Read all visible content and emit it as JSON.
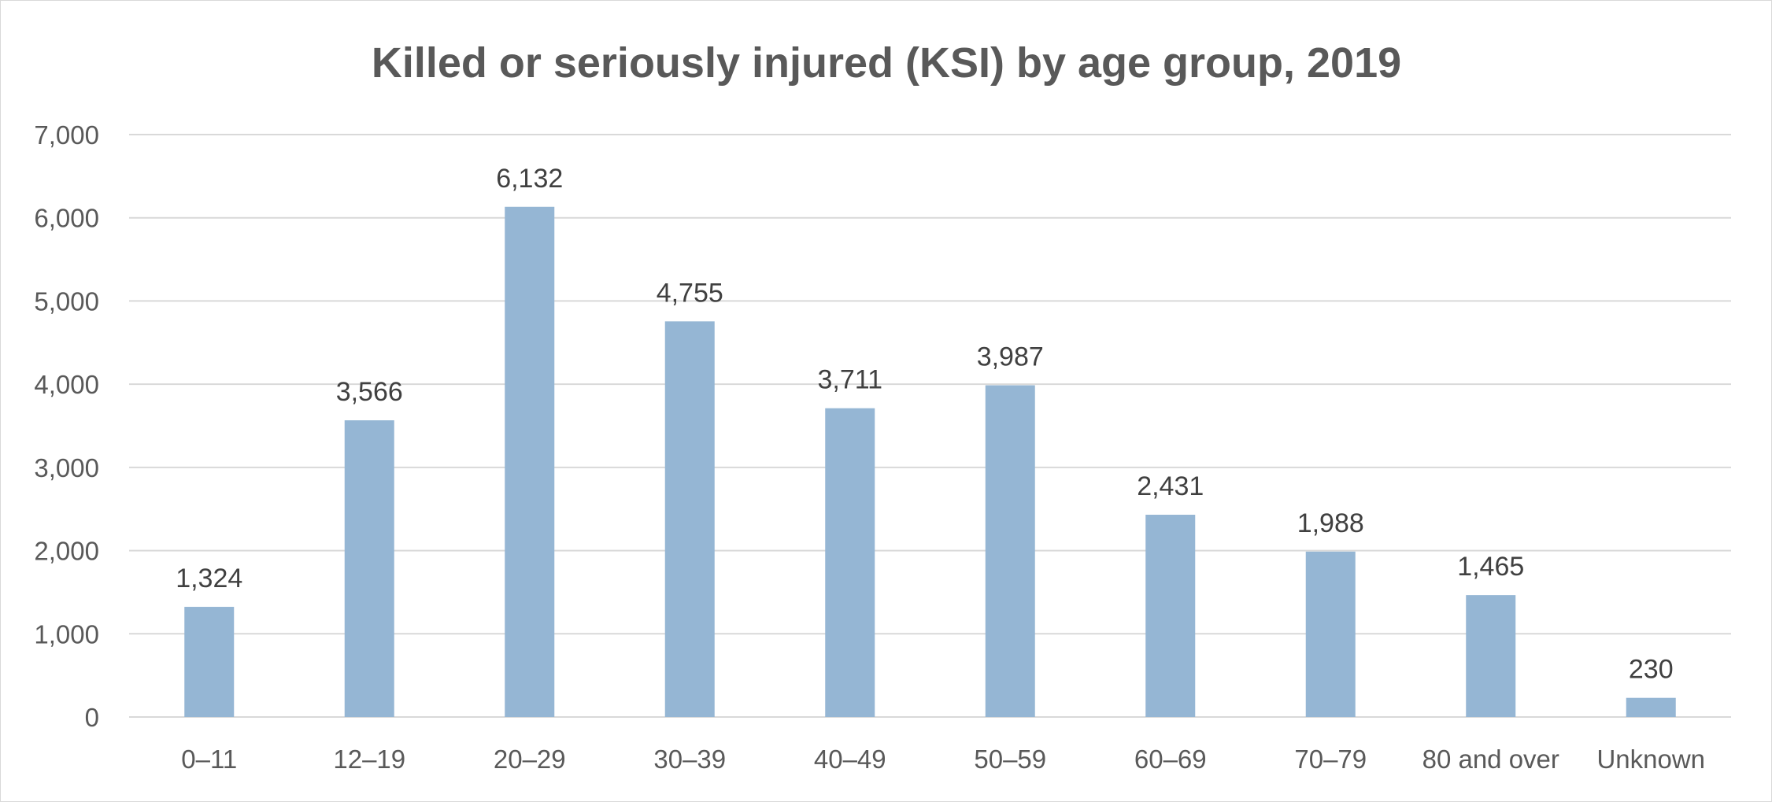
{
  "chart_data": {
    "type": "bar",
    "title": "Killed or seriously injured (KSI) by age group, 2019",
    "xlabel": "",
    "ylabel": "",
    "categories": [
      "0–11",
      "12–19",
      "20–29",
      "30–39",
      "40–49",
      "50–59",
      "60–69",
      "70–79",
      "80 and over",
      "Unknown"
    ],
    "values": [
      1324,
      3566,
      6132,
      4755,
      3711,
      3987,
      2431,
      1988,
      1465,
      230
    ],
    "value_labels": [
      "1,324",
      "3,566",
      "6,132",
      "4,755",
      "3,711",
      "3,987",
      "2,431",
      "1,988",
      "1,465",
      "230"
    ],
    "ylim": [
      0,
      7000
    ],
    "yticks": [
      0,
      1000,
      2000,
      3000,
      4000,
      5000,
      6000,
      7000
    ],
    "ytick_labels": [
      "0",
      "1,000",
      "2,000",
      "3,000",
      "4,000",
      "5,000",
      "6,000",
      "7,000"
    ],
    "grid": true,
    "legend": "none",
    "bar_color": "#95b6d4",
    "grid_color": "#d9d9d9"
  }
}
